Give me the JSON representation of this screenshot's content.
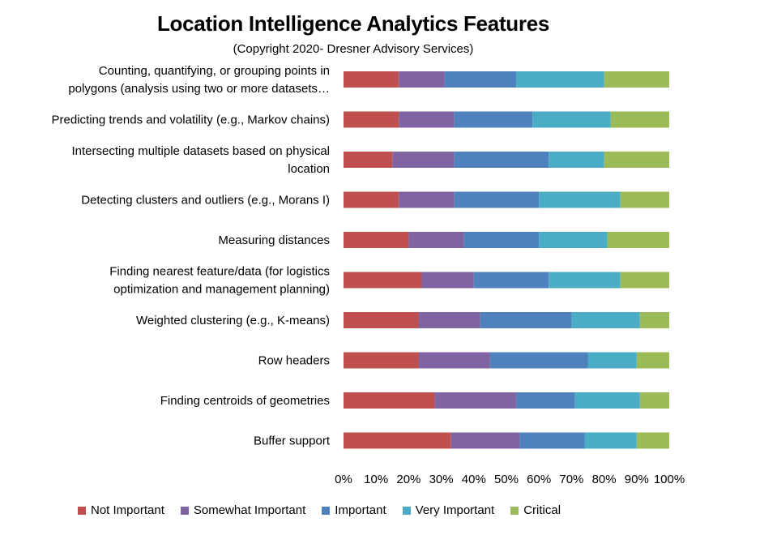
{
  "chart_data": {
    "type": "bar",
    "orientation": "horizontal",
    "stacked": "percent",
    "title": "Location Intelligence Analytics Features",
    "subtitle": "(Copyright 2020- Dresner Advisory Services)",
    "categories": [
      [
        "Counting, quantifying, or grouping points in",
        "polygons (analysis using two or more datasets…"
      ],
      [
        "Predicting trends and volatility (e.g., Markov chains)"
      ],
      [
        "Intersecting multiple datasets based on physical",
        "location"
      ],
      [
        "Detecting clusters and outliers (e.g., Morans I)"
      ],
      [
        "Measuring distances"
      ],
      [
        "Finding nearest feature/data (for logistics",
        "optimization and management planning)"
      ],
      [
        "Weighted clustering (e.g., K-means)"
      ],
      [
        "Row headers"
      ],
      [
        "Finding centroids of geometries"
      ],
      [
        "Buffer support"
      ]
    ],
    "series": [
      {
        "name": "Not Important",
        "color": "#c0504d",
        "values": [
          17,
          17,
          15,
          17,
          20,
          24,
          23,
          23,
          28,
          33
        ]
      },
      {
        "name": "Somewhat Important",
        "color": "#8064a2",
        "values": [
          14,
          17,
          19,
          17,
          17,
          16,
          19,
          22,
          25,
          21
        ]
      },
      {
        "name": "Important",
        "color": "#4f81bd",
        "values": [
          22,
          24,
          29,
          26,
          23,
          23,
          28,
          30,
          18,
          20
        ]
      },
      {
        "name": "Very Important",
        "color": "#4bacc6",
        "values": [
          27,
          24,
          17,
          25,
          21,
          22,
          21,
          15,
          20,
          16
        ]
      },
      {
        "name": "Critical",
        "color": "#9bbb59",
        "values": [
          20,
          18,
          20,
          15,
          19,
          15,
          9,
          10,
          9,
          10
        ]
      }
    ],
    "x_ticks": [
      "0%",
      "10%",
      "20%",
      "30%",
      "40%",
      "50%",
      "60%",
      "70%",
      "80%",
      "90%",
      "100%"
    ],
    "xlim": [
      0,
      100
    ],
    "grid": false,
    "legend_position": "bottom"
  }
}
